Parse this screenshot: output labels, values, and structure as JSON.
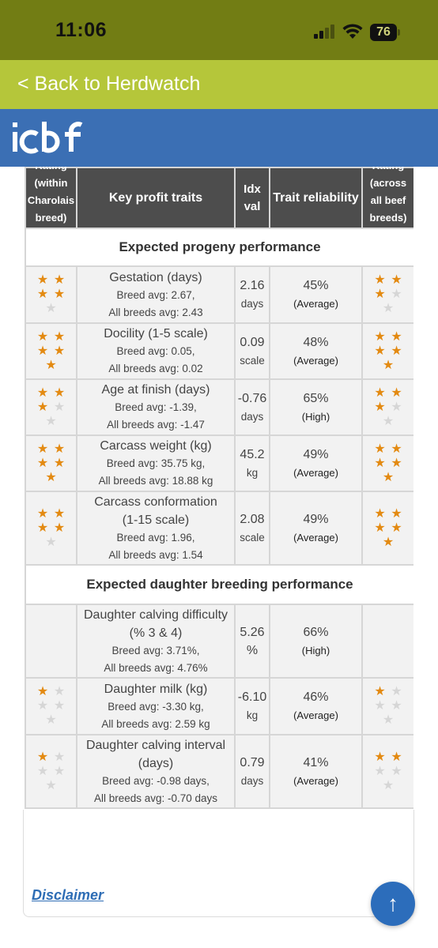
{
  "status_bar": {
    "time": "11:06",
    "battery": "76"
  },
  "nav": {
    "back_label": "< Back to Herdwatch"
  },
  "header": {
    "logo_text": "icbf",
    "colors": {
      "bar": "#3b6fb4",
      "back_bar": "#b5c63a",
      "status_bar": "#727d14"
    }
  },
  "table": {
    "columns": [
      "Rating\n(within\nCharolais\nbreed)",
      "Key profit traits",
      "Idx\nval",
      "Trait reliability",
      "Rating\n(across\nall beef\nbreeds)"
    ],
    "star_color": "#e38a12",
    "sections": [
      {
        "title": "Expected progeny performance",
        "rows": [
          {
            "trait": "Gestation (days)",
            "breed_avg": "Breed avg: 2.67,",
            "all_avg": "All breeds avg: 2.43",
            "idx": "2.16",
            "unit": "days",
            "reliability": "45%",
            "rel_label": "(Average)",
            "stars_within": 4,
            "stars_across": 3
          },
          {
            "trait": "Docility (1-5 scale)",
            "breed_avg": "Breed avg: 0.05,",
            "all_avg": "All breeds avg: 0.02",
            "idx": "0.09",
            "unit": "scale",
            "reliability": "48%",
            "rel_label": "(Average)",
            "stars_within": 5,
            "stars_across": 5
          },
          {
            "trait": "Age at finish (days)",
            "breed_avg": "Breed avg: -1.39,",
            "all_avg": "All breeds avg: -1.47",
            "idx": "-0.76",
            "unit": "days",
            "reliability": "65%",
            "rel_label": "(High)",
            "stars_within": 3,
            "stars_across": 3
          },
          {
            "trait": "Carcass weight (kg)",
            "breed_avg": "Breed avg: 35.75 kg,",
            "all_avg": "All breeds avg: 18.88 kg",
            "idx": "45.2",
            "unit": "kg",
            "reliability": "49%",
            "rel_label": "(Average)",
            "stars_within": 5,
            "stars_across": 5
          },
          {
            "trait": "Carcass conformation\n(1-15 scale)",
            "breed_avg": "Breed avg: 1.96,",
            "all_avg": "All breeds avg: 1.54",
            "idx": "2.08",
            "unit": "scale",
            "reliability": "49%",
            "rel_label": "(Average)",
            "stars_within": 4,
            "stars_across": 5
          }
        ]
      },
      {
        "title": "Expected daughter breeding performance",
        "rows": [
          {
            "trait": "Daughter calving difficulty\n(% 3 & 4)",
            "breed_avg": "Breed avg: 3.71%,",
            "all_avg": "All breeds avg: 4.76%",
            "idx": "5.26",
            "unit": "%",
            "reliability": "66%",
            "rel_label": "(High)",
            "stars_within": 0,
            "stars_across": 0
          },
          {
            "trait": "Daughter milk (kg)",
            "breed_avg": "Breed avg: -3.30 kg,",
            "all_avg": "All breeds avg: 2.59 kg",
            "idx": "-6.10",
            "unit": "kg",
            "reliability": "46%",
            "rel_label": "(Average)",
            "stars_within": 1,
            "stars_across": 1
          },
          {
            "trait": "Daughter calving interval\n(days)",
            "breed_avg": "Breed avg: -0.98 days,",
            "all_avg": "All breeds avg: -0.70 days",
            "idx": "0.79",
            "unit": "days",
            "reliability": "41%",
            "rel_label": "(Average)",
            "stars_within": 1,
            "stars_across": 2
          }
        ]
      }
    ]
  },
  "footer": {
    "disclaimer": "Disclaimer",
    "scroll_top_icon": "arrow-up-icon"
  }
}
